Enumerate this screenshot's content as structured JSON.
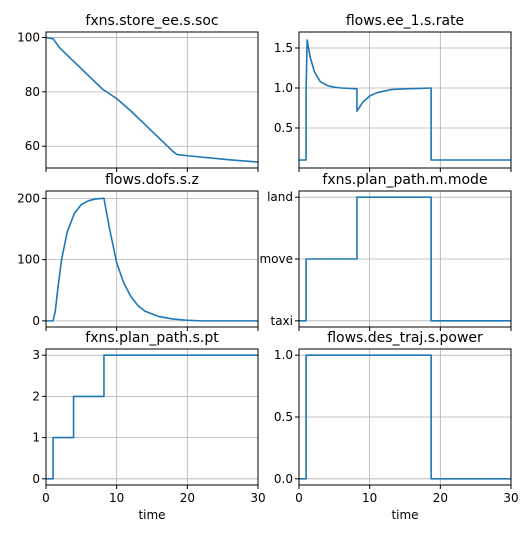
{
  "colors": {
    "line": "#1f77b4",
    "grid": "#b0b0b0",
    "frame": "#000000"
  },
  "chart_data": [
    {
      "type": "line",
      "title": "fxns.store_ee.s.soc",
      "xlabel": "",
      "xlim": [
        0,
        30
      ],
      "ylim": [
        52,
        102
      ],
      "xticks": [
        0,
        10,
        20,
        30
      ],
      "xtick_labels": [
        "",
        "",
        "",
        ""
      ],
      "yticks": [
        60,
        80,
        100
      ],
      "ytick_labels": [
        "60",
        "80",
        "100"
      ],
      "grid": true,
      "series": [
        {
          "x": [
            0,
            1,
            2,
            4,
            6,
            8,
            10,
            12,
            14,
            16,
            18,
            18.5,
            20,
            22,
            24,
            26,
            28,
            30
          ],
          "y": [
            100,
            99.5,
            96,
            91,
            86,
            81,
            77.5,
            73,
            68,
            63,
            58,
            57,
            56.5,
            56,
            55.5,
            55,
            54.6,
            54.2
          ]
        }
      ]
    },
    {
      "type": "line",
      "title": "flows.ee_1.s.rate",
      "xlabel": "",
      "xlim": [
        0,
        30
      ],
      "ylim": [
        0,
        1.7
      ],
      "xticks": [
        0,
        10,
        20,
        30
      ],
      "xtick_labels": [
        "",
        "",
        "",
        ""
      ],
      "yticks": [
        0.5,
        1.0,
        1.5
      ],
      "ytick_labels": [
        "0.5",
        "1.0",
        "1.5"
      ],
      "grid": true,
      "series": [
        {
          "x": [
            0,
            1,
            1,
            1.15,
            1.6,
            2.2,
            3,
            4,
            5,
            6,
            8.2,
            8.2,
            9,
            10,
            11,
            12,
            13,
            15,
            17,
            18.7,
            18.7,
            30
          ],
          "y": [
            0.1,
            0.1,
            0.95,
            1.6,
            1.38,
            1.2,
            1.08,
            1.03,
            1.01,
            1.0,
            0.99,
            0.71,
            0.82,
            0.9,
            0.94,
            0.96,
            0.98,
            0.99,
            0.995,
            1.0,
            0.1,
            0.1
          ]
        }
      ]
    },
    {
      "type": "line",
      "title": "flows.dofs.s.z",
      "xlabel": "",
      "xlim": [
        0,
        30
      ],
      "ylim": [
        -10,
        212
      ],
      "xticks": [
        0,
        10,
        20,
        30
      ],
      "xtick_labels": [
        "",
        "",
        "",
        ""
      ],
      "yticks": [
        0,
        100,
        200
      ],
      "ytick_labels": [
        "0",
        "100",
        "200"
      ],
      "grid": true,
      "series": [
        {
          "x": [
            0,
            1,
            1.3,
            1.7,
            2.2,
            3,
            4,
            5,
            6,
            7,
            8.2,
            9,
            10,
            11,
            12,
            13,
            14,
            16,
            18,
            20,
            22,
            30
          ],
          "y": [
            0,
            0,
            15,
            55,
            100,
            145,
            175,
            190,
            196,
            199,
            200,
            150,
            95,
            62,
            40,
            25,
            16,
            7,
            3,
            1,
            0,
            0
          ]
        }
      ]
    },
    {
      "type": "line",
      "title": "fxns.plan_path.m.mode",
      "xlabel": "",
      "xlim": [
        0,
        30
      ],
      "ylim": [
        -0.1,
        2.1
      ],
      "xticks": [
        0,
        10,
        20,
        30
      ],
      "xtick_labels": [
        "",
        "",
        "",
        ""
      ],
      "yticks": [
        0,
        1,
        2
      ],
      "ytick_labels": [
        "taxi",
        "move",
        "land"
      ],
      "grid": true,
      "series": [
        {
          "x": [
            0,
            1,
            1,
            8.2,
            8.2,
            18.7,
            18.7,
            30
          ],
          "y": [
            0,
            0,
            1,
            1,
            2,
            2,
            0,
            0
          ]
        }
      ]
    },
    {
      "type": "line",
      "title": "fxns.plan_path.s.pt",
      "xlabel": "time",
      "xlim": [
        0,
        30
      ],
      "ylim": [
        -0.15,
        3.15
      ],
      "xticks": [
        0,
        10,
        20,
        30
      ],
      "xtick_labels": [
        "0",
        "10",
        "20",
        "30"
      ],
      "yticks": [
        0,
        1,
        2,
        3
      ],
      "ytick_labels": [
        "0",
        "1",
        "2",
        "3"
      ],
      "grid": true,
      "series": [
        {
          "x": [
            0,
            1,
            1,
            3.9,
            3.9,
            8.2,
            8.2,
            30
          ],
          "y": [
            0,
            0,
            1,
            1,
            2,
            2,
            3,
            3
          ]
        }
      ]
    },
    {
      "type": "line",
      "title": "flows.des_traj.s.power",
      "xlabel": "time",
      "xlim": [
        0,
        30
      ],
      "ylim": [
        -0.05,
        1.05
      ],
      "xticks": [
        0,
        10,
        20,
        30
      ],
      "xtick_labels": [
        "0",
        "10",
        "20",
        "30"
      ],
      "yticks": [
        0,
        0.5,
        1.0
      ],
      "ytick_labels": [
        "0.0",
        "0.5",
        "1.0"
      ],
      "grid": true,
      "series": [
        {
          "x": [
            0,
            1,
            1,
            18.7,
            18.7,
            30
          ],
          "y": [
            0,
            0,
            1,
            1,
            0,
            0
          ]
        }
      ]
    }
  ]
}
